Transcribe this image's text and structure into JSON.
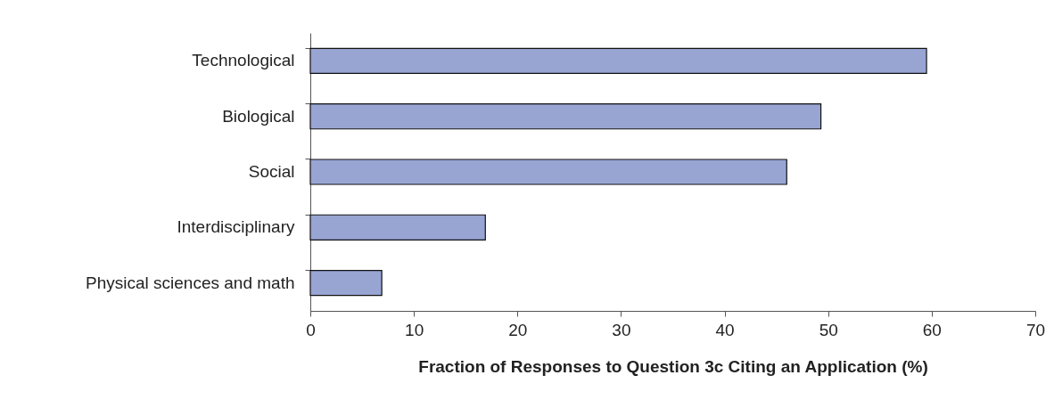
{
  "chart_data": {
    "type": "bar",
    "orientation": "horizontal",
    "categories": [
      "Technological",
      "Biological",
      "Social",
      "Interdisciplinary",
      "Physical sciences and math"
    ],
    "values": [
      59.5,
      49.3,
      46,
      16.9,
      6.9
    ],
    "color": "#98a5d3",
    "xlabel": "Fraction of Responses to Question 3c Citing an Application (%)",
    "xlim": [
      0,
      70
    ],
    "xticks": [
      0,
      10,
      20,
      30,
      40,
      50,
      60,
      70
    ],
    "grid": false
  }
}
